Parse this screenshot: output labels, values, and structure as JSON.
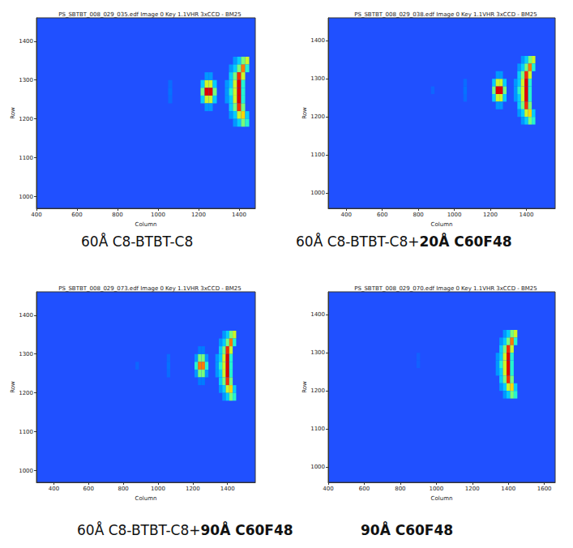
{
  "chart_data": [
    {
      "type": "heatmap",
      "title": "PS_SBTBT_008_029_035.edf Image 0 Key 1.1VHR 3xCCD - BM25",
      "caption": "60Å C8-BTBT-C8",
      "xlabel": "Column",
      "ylabel": "Row",
      "xlim": [
        400,
        1480
      ],
      "xticks": [
        400,
        600,
        800,
        1000,
        1200,
        1400
      ],
      "ylim": [
        970,
        1460
      ],
      "yticks": [
        1000,
        1100,
        1200,
        1300,
        1400
      ],
      "grid": false,
      "zlim": [
        0,
        10
      ],
      "cell_size": [
        20,
        20
      ],
      "cells": [
        [
          1060,
          1290,
          1
        ],
        [
          1060,
          1270,
          1.2
        ],
        [
          1060,
          1250,
          1
        ],
        [
          1220,
          1290,
          3
        ],
        [
          1240,
          1290,
          6
        ],
        [
          1260,
          1290,
          6
        ],
        [
          1280,
          1290,
          3
        ],
        [
          1220,
          1270,
          5
        ],
        [
          1240,
          1270,
          10
        ],
        [
          1260,
          1270,
          10
        ],
        [
          1280,
          1270,
          5
        ],
        [
          1220,
          1250,
          3
        ],
        [
          1240,
          1250,
          6
        ],
        [
          1260,
          1250,
          6
        ],
        [
          1280,
          1250,
          3
        ],
        [
          1240,
          1310,
          2
        ],
        [
          1260,
          1310,
          2
        ],
        [
          1240,
          1230,
          2
        ],
        [
          1260,
          1230,
          2
        ],
        [
          1380,
          1350,
          2
        ],
        [
          1400,
          1350,
          3
        ],
        [
          1420,
          1350,
          5
        ],
        [
          1440,
          1350,
          6
        ],
        [
          1360,
          1330,
          2
        ],
        [
          1380,
          1330,
          3
        ],
        [
          1400,
          1330,
          5
        ],
        [
          1420,
          1330,
          8
        ],
        [
          1440,
          1330,
          4
        ],
        [
          1360,
          1310,
          3
        ],
        [
          1380,
          1310,
          5
        ],
        [
          1400,
          1310,
          9
        ],
        [
          1420,
          1310,
          6
        ],
        [
          1340,
          1290,
          2
        ],
        [
          1360,
          1290,
          3
        ],
        [
          1380,
          1290,
          6
        ],
        [
          1400,
          1290,
          10
        ],
        [
          1420,
          1290,
          4
        ],
        [
          1340,
          1270,
          2
        ],
        [
          1360,
          1270,
          4
        ],
        [
          1380,
          1270,
          6
        ],
        [
          1400,
          1270,
          10
        ],
        [
          1420,
          1270,
          4
        ],
        [
          1340,
          1250,
          2
        ],
        [
          1360,
          1250,
          3
        ],
        [
          1380,
          1250,
          6
        ],
        [
          1400,
          1250,
          10
        ],
        [
          1420,
          1250,
          4
        ],
        [
          1360,
          1230,
          3
        ],
        [
          1380,
          1230,
          5
        ],
        [
          1400,
          1230,
          9
        ],
        [
          1420,
          1230,
          5
        ],
        [
          1360,
          1210,
          2
        ],
        [
          1380,
          1210,
          3
        ],
        [
          1400,
          1210,
          6
        ],
        [
          1420,
          1210,
          7
        ],
        [
          1440,
          1210,
          3
        ],
        [
          1380,
          1190,
          2
        ],
        [
          1400,
          1190,
          3
        ],
        [
          1420,
          1190,
          5
        ],
        [
          1440,
          1190,
          4
        ]
      ]
    },
    {
      "type": "heatmap",
      "title": "PS_SBTBT_008_029_038.edf Image 0 Key 1.1VHR 3xCCD - BM25",
      "caption": "60Å C8-BTBT-C8+",
      "caption_bold": "20Å C60F48",
      "xlabel": "Column",
      "ylabel": "Row",
      "xlim": [
        300,
        1560
      ],
      "xticks": [
        400,
        600,
        800,
        1000,
        1200,
        1400
      ],
      "ylim": [
        960,
        1460
      ],
      "yticks": [
        1000,
        1100,
        1200,
        1300,
        1400
      ],
      "grid": false,
      "zlim": [
        0,
        10
      ],
      "cell_size": [
        20,
        20
      ],
      "cells": [
        [
          880,
          1270,
          0.8
        ],
        [
          1060,
          1290,
          1
        ],
        [
          1060,
          1270,
          1.2
        ],
        [
          1060,
          1250,
          1
        ],
        [
          1220,
          1290,
          3
        ],
        [
          1240,
          1290,
          6
        ],
        [
          1260,
          1290,
          6
        ],
        [
          1280,
          1290,
          3
        ],
        [
          1220,
          1270,
          5
        ],
        [
          1240,
          1270,
          10
        ],
        [
          1260,
          1270,
          10
        ],
        [
          1280,
          1270,
          5
        ],
        [
          1220,
          1250,
          3
        ],
        [
          1240,
          1250,
          6
        ],
        [
          1260,
          1250,
          6
        ],
        [
          1280,
          1250,
          3
        ],
        [
          1240,
          1310,
          2
        ],
        [
          1260,
          1310,
          2
        ],
        [
          1240,
          1230,
          2
        ],
        [
          1260,
          1230,
          2
        ],
        [
          1380,
          1350,
          2
        ],
        [
          1400,
          1350,
          3
        ],
        [
          1420,
          1350,
          5
        ],
        [
          1440,
          1350,
          6
        ],
        [
          1360,
          1330,
          2
        ],
        [
          1380,
          1330,
          3
        ],
        [
          1400,
          1330,
          5
        ],
        [
          1420,
          1330,
          8
        ],
        [
          1440,
          1330,
          4
        ],
        [
          1360,
          1310,
          3
        ],
        [
          1380,
          1310,
          5
        ],
        [
          1400,
          1310,
          9
        ],
        [
          1420,
          1310,
          6
        ],
        [
          1340,
          1290,
          2
        ],
        [
          1360,
          1290,
          3
        ],
        [
          1380,
          1290,
          6
        ],
        [
          1400,
          1290,
          10
        ],
        [
          1420,
          1290,
          4
        ],
        [
          1340,
          1270,
          2
        ],
        [
          1360,
          1270,
          4
        ],
        [
          1380,
          1270,
          6
        ],
        [
          1400,
          1270,
          10
        ],
        [
          1420,
          1270,
          4
        ],
        [
          1340,
          1250,
          2
        ],
        [
          1360,
          1250,
          3
        ],
        [
          1380,
          1250,
          6
        ],
        [
          1400,
          1250,
          10
        ],
        [
          1420,
          1250,
          4
        ],
        [
          1360,
          1230,
          3
        ],
        [
          1380,
          1230,
          5
        ],
        [
          1400,
          1230,
          9
        ],
        [
          1420,
          1230,
          5
        ],
        [
          1360,
          1210,
          2
        ],
        [
          1380,
          1210,
          3
        ],
        [
          1400,
          1210,
          6
        ],
        [
          1420,
          1210,
          7
        ],
        [
          1440,
          1210,
          3
        ],
        [
          1380,
          1190,
          2
        ],
        [
          1400,
          1190,
          3
        ],
        [
          1420,
          1190,
          5
        ],
        [
          1440,
          1190,
          4
        ]
      ]
    },
    {
      "type": "heatmap",
      "title": "PS_SBTBT_008_029_073.edf Image 0 Key 1.1VHR 3xCCD - BM25",
      "caption": "60Å C8-BTBT-C8+",
      "caption_bold": "90Å C60F48",
      "xlabel": "Column",
      "ylabel": "Row",
      "xlim": [
        300,
        1560
      ],
      "xticks": [
        400,
        600,
        800,
        1000,
        1200,
        1400
      ],
      "ylim": [
        970,
        1460
      ],
      "yticks": [
        1000,
        1100,
        1200,
        1300,
        1400
      ],
      "grid": false,
      "zlim": [
        0,
        10
      ],
      "cell_size": [
        20,
        20
      ],
      "cells": [
        [
          880,
          1270,
          0.8
        ],
        [
          1060,
          1290,
          1
        ],
        [
          1060,
          1270,
          1.2
        ],
        [
          1060,
          1250,
          1
        ],
        [
          1220,
          1290,
          2
        ],
        [
          1240,
          1290,
          5
        ],
        [
          1260,
          1290,
          5
        ],
        [
          1280,
          1290,
          2
        ],
        [
          1220,
          1270,
          4
        ],
        [
          1240,
          1270,
          8
        ],
        [
          1260,
          1270,
          8
        ],
        [
          1280,
          1270,
          4
        ],
        [
          1220,
          1250,
          2
        ],
        [
          1240,
          1250,
          5
        ],
        [
          1260,
          1250,
          5
        ],
        [
          1280,
          1250,
          2
        ],
        [
          1240,
          1310,
          1.5
        ],
        [
          1260,
          1310,
          1.5
        ],
        [
          1240,
          1230,
          1.5
        ],
        [
          1260,
          1230,
          1.5
        ],
        [
          1380,
          1350,
          2
        ],
        [
          1400,
          1350,
          3
        ],
        [
          1420,
          1350,
          5
        ],
        [
          1440,
          1350,
          6
        ],
        [
          1360,
          1330,
          2
        ],
        [
          1380,
          1330,
          3
        ],
        [
          1400,
          1330,
          5
        ],
        [
          1420,
          1330,
          8
        ],
        [
          1440,
          1330,
          4
        ],
        [
          1360,
          1310,
          3
        ],
        [
          1380,
          1310,
          5
        ],
        [
          1400,
          1310,
          9
        ],
        [
          1420,
          1310,
          6
        ],
        [
          1340,
          1290,
          2
        ],
        [
          1360,
          1290,
          3
        ],
        [
          1380,
          1290,
          6
        ],
        [
          1400,
          1290,
          10
        ],
        [
          1420,
          1290,
          4
        ],
        [
          1340,
          1270,
          2
        ],
        [
          1360,
          1270,
          4
        ],
        [
          1380,
          1270,
          6
        ],
        [
          1400,
          1270,
          10
        ],
        [
          1420,
          1270,
          4
        ],
        [
          1340,
          1250,
          2
        ],
        [
          1360,
          1250,
          3
        ],
        [
          1380,
          1250,
          6
        ],
        [
          1400,
          1250,
          10
        ],
        [
          1420,
          1250,
          4
        ],
        [
          1360,
          1230,
          3
        ],
        [
          1380,
          1230,
          5
        ],
        [
          1400,
          1230,
          9
        ],
        [
          1420,
          1230,
          5
        ],
        [
          1360,
          1210,
          2
        ],
        [
          1380,
          1210,
          3
        ],
        [
          1400,
          1210,
          6
        ],
        [
          1420,
          1210,
          7
        ],
        [
          1440,
          1210,
          3
        ],
        [
          1380,
          1190,
          2
        ],
        [
          1400,
          1190,
          3
        ],
        [
          1420,
          1190,
          5
        ],
        [
          1440,
          1190,
          4
        ]
      ]
    },
    {
      "type": "heatmap",
      "title": "PS_SBTBT_008_029_070.edf Image 0 Key 1.1VHR 3xCCD - BM25",
      "caption_bold": "90Å C60F48",
      "xlabel": "Column",
      "ylabel": "Row",
      "xlim": [
        400,
        1660
      ],
      "xticks": [
        400,
        600,
        800,
        1000,
        1200,
        1400,
        1600
      ],
      "ylim": [
        960,
        1460
      ],
      "yticks": [
        1000,
        1100,
        1200,
        1300,
        1400
      ],
      "grid": false,
      "zlim": [
        0,
        10
      ],
      "cell_size": [
        20,
        20
      ],
      "cells": [
        [
          900,
          1290,
          0.6
        ],
        [
          900,
          1270,
          0.6
        ],
        [
          1380,
          1350,
          2
        ],
        [
          1400,
          1350,
          3
        ],
        [
          1420,
          1350,
          5
        ],
        [
          1440,
          1350,
          6
        ],
        [
          1360,
          1330,
          2
        ],
        [
          1380,
          1330,
          3
        ],
        [
          1400,
          1330,
          5
        ],
        [
          1420,
          1330,
          8
        ],
        [
          1440,
          1330,
          4
        ],
        [
          1360,
          1310,
          3
        ],
        [
          1380,
          1310,
          5
        ],
        [
          1400,
          1310,
          9
        ],
        [
          1420,
          1310,
          6
        ],
        [
          1340,
          1290,
          2
        ],
        [
          1360,
          1290,
          3
        ],
        [
          1380,
          1290,
          6
        ],
        [
          1400,
          1290,
          10
        ],
        [
          1420,
          1290,
          4
        ],
        [
          1340,
          1270,
          2
        ],
        [
          1360,
          1270,
          4
        ],
        [
          1380,
          1270,
          6
        ],
        [
          1400,
          1270,
          10
        ],
        [
          1420,
          1270,
          4
        ],
        [
          1340,
          1250,
          2
        ],
        [
          1360,
          1250,
          3
        ],
        [
          1380,
          1250,
          6
        ],
        [
          1400,
          1250,
          10
        ],
        [
          1420,
          1250,
          4
        ],
        [
          1360,
          1230,
          3
        ],
        [
          1380,
          1230,
          5
        ],
        [
          1400,
          1230,
          9
        ],
        [
          1420,
          1230,
          5
        ],
        [
          1360,
          1210,
          2
        ],
        [
          1380,
          1210,
          3
        ],
        [
          1400,
          1210,
          6
        ],
        [
          1420,
          1210,
          7
        ],
        [
          1440,
          1210,
          3
        ],
        [
          1380,
          1190,
          2
        ],
        [
          1400,
          1190,
          3
        ],
        [
          1420,
          1190,
          5
        ],
        [
          1440,
          1190,
          4
        ]
      ]
    }
  ]
}
